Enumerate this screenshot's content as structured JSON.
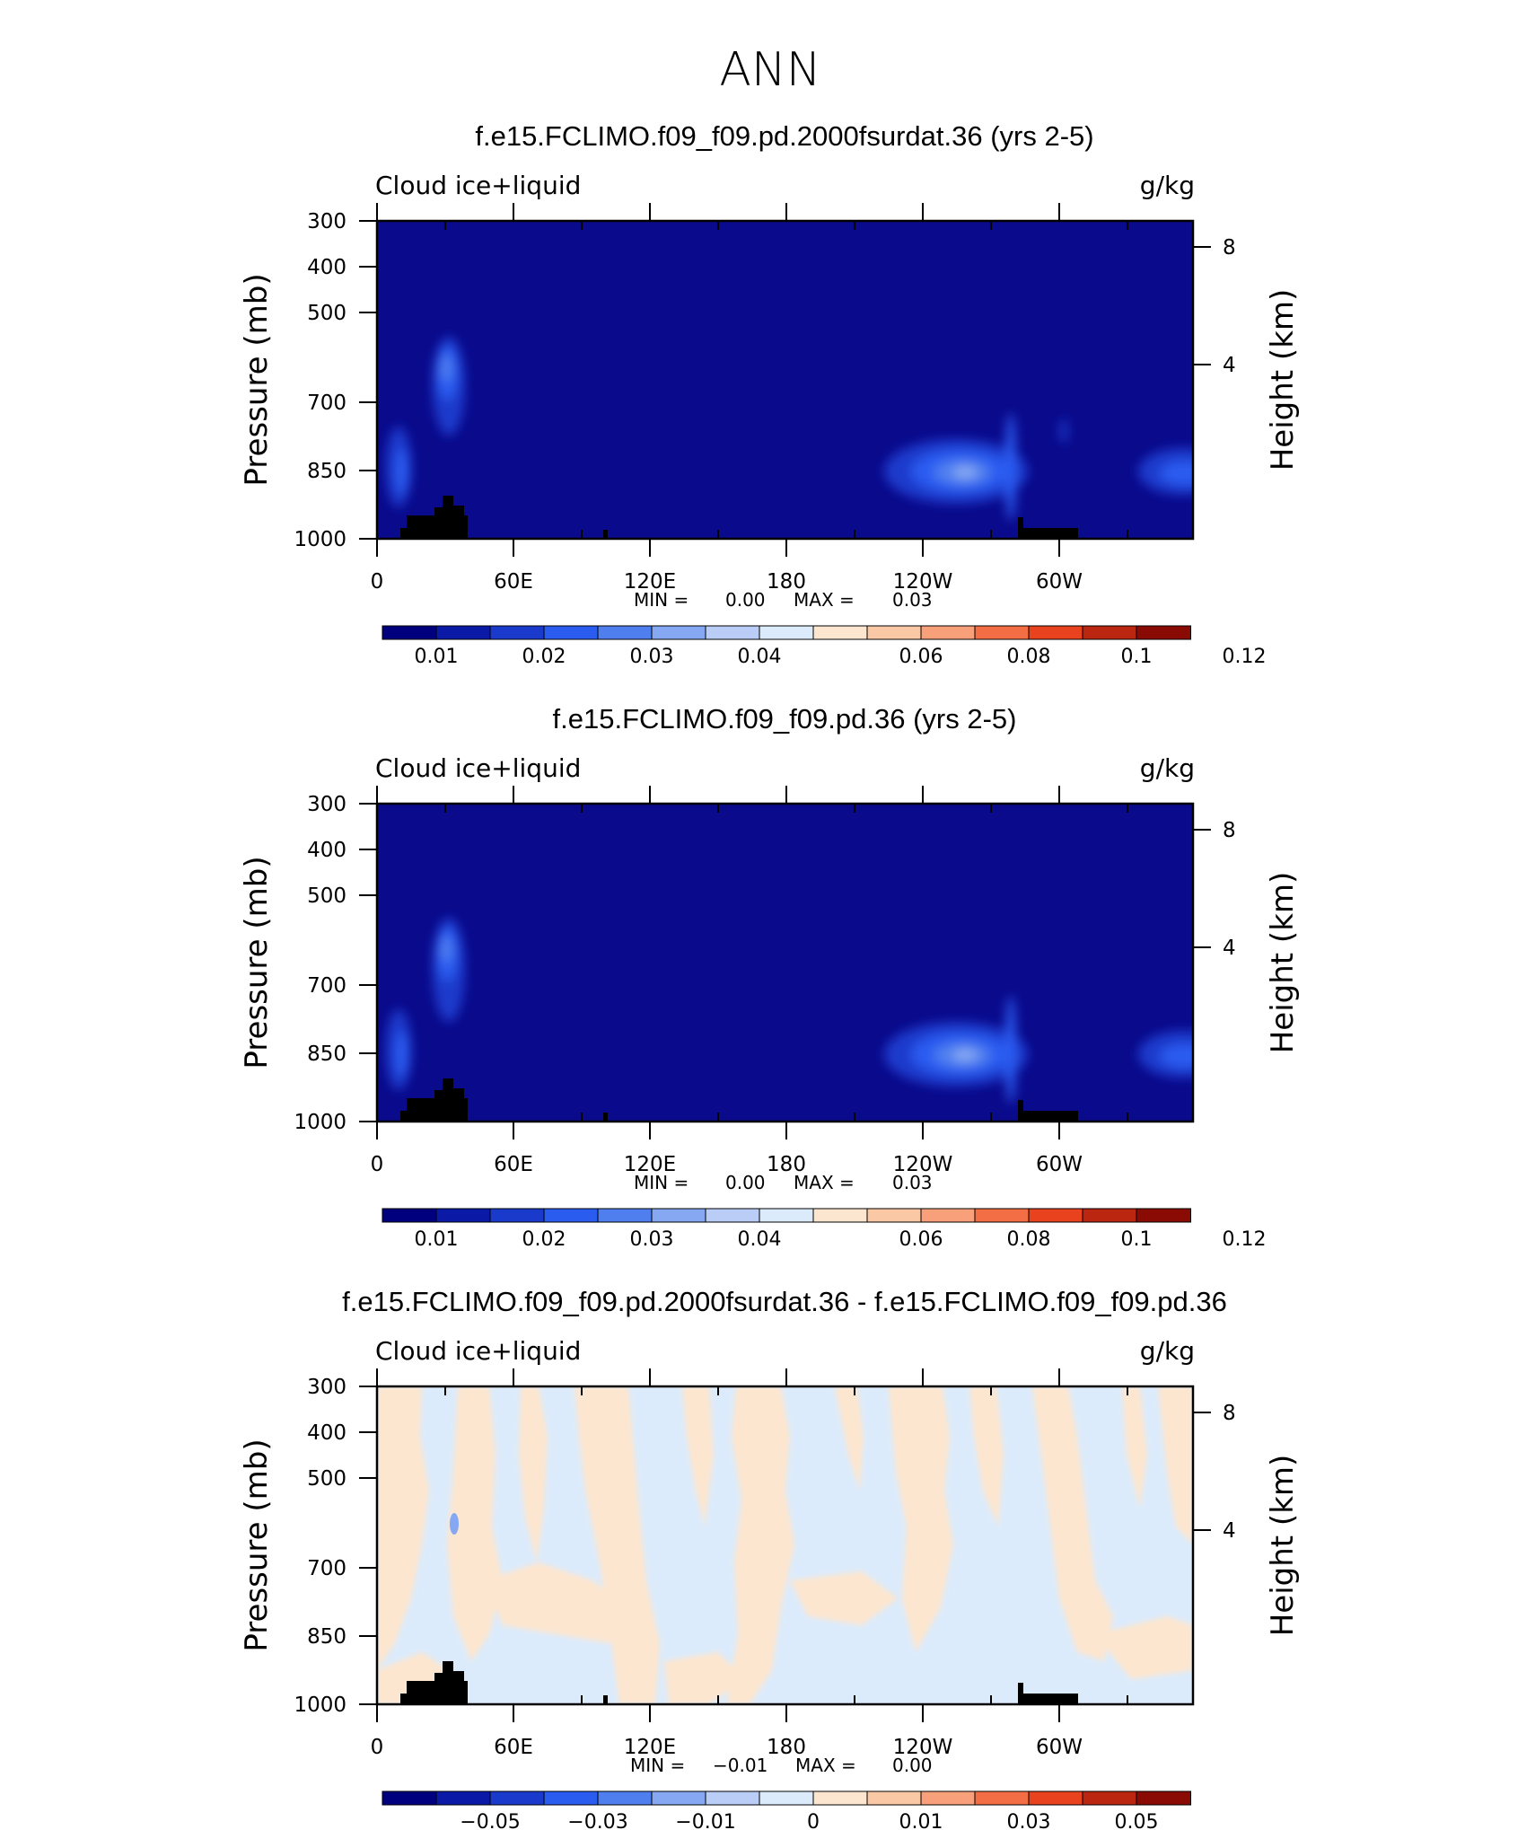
{
  "figure": {
    "title": "ANN"
  },
  "colors": {
    "background": "#0a0a8c",
    "land": "#000000",
    "abs_scale": [
      "#00007f",
      "#0a1aa6",
      "#1a3acc",
      "#2a5cf0",
      "#4f7fef",
      "#86a8f2",
      "#b9cdf7",
      "#dcebfb",
      "#fde6cf",
      "#fbc8a6",
      "#f8a07a",
      "#f46e45",
      "#e8431e",
      "#bb2610",
      "#8a0a04"
    ],
    "diff_scale": [
      "#00007f",
      "#0a1aa6",
      "#1a3acc",
      "#2a5cf0",
      "#4f7fef",
      "#86a8f2",
      "#b9cdf7",
      "#dcebfb",
      "#fde6cf",
      "#fbc8a6",
      "#f8a07a",
      "#f46e45",
      "#e8431e",
      "#bb2610",
      "#8a0a04"
    ]
  },
  "chart_data": [
    {
      "type": "heatmap",
      "title": "f.e15.FCLIMO.f09_f09.pd.2000fsurdat.36 (yrs 2-5)",
      "variable": "Cloud ice+liquid",
      "units": "g/kg",
      "ylabel": "Pressure (mb)",
      "ylabel_right": "Height (km)",
      "x_ticks": [
        "0",
        "60E",
        "120E",
        "180",
        "120W",
        "60W"
      ],
      "y_ticks": [
        "300",
        "400",
        "500",
        "700",
        "850",
        "1000"
      ],
      "y_ticks_right": [
        "8",
        "4"
      ],
      "ylim": [
        1000,
        300
      ],
      "stats": {
        "min_label": "MIN =",
        "min": "0.00",
        "max_label": "MAX =",
        "max": "0.03"
      },
      "colorbar_labels": [
        "0.01",
        "0.02",
        "0.03",
        "0.04",
        "0.06",
        "0.08",
        "0.1",
        "0.12"
      ]
    },
    {
      "type": "heatmap",
      "title": "f.e15.FCLIMO.f09_f09.pd.36 (yrs 2-5)",
      "variable": "Cloud ice+liquid",
      "units": "g/kg",
      "ylabel": "Pressure (mb)",
      "ylabel_right": "Height (km)",
      "x_ticks": [
        "0",
        "60E",
        "120E",
        "180",
        "120W",
        "60W"
      ],
      "y_ticks": [
        "300",
        "400",
        "500",
        "700",
        "850",
        "1000"
      ],
      "y_ticks_right": [
        "8",
        "4"
      ],
      "ylim": [
        1000,
        300
      ],
      "stats": {
        "min_label": "MIN =",
        "min": "0.00",
        "max_label": "MAX =",
        "max": "0.03"
      },
      "colorbar_labels": [
        "0.01",
        "0.02",
        "0.03",
        "0.04",
        "0.06",
        "0.08",
        "0.1",
        "0.12"
      ]
    },
    {
      "type": "heatmap",
      "title": "f.e15.FCLIMO.f09_f09.pd.2000fsurdat.36 - f.e15.FCLIMO.f09_f09.pd.36",
      "variable": "Cloud ice+liquid",
      "units": "g/kg",
      "ylabel": "Pressure (mb)",
      "ylabel_right": "Height (km)",
      "x_ticks": [
        "0",
        "60E",
        "120E",
        "180",
        "120W",
        "60W"
      ],
      "y_ticks": [
        "300",
        "400",
        "500",
        "700",
        "850",
        "1000"
      ],
      "y_ticks_right": [
        "8",
        "4"
      ],
      "ylim": [
        1000,
        300
      ],
      "stats": {
        "min_label": "MIN =",
        "min": "−0.01",
        "max_label": "MAX =",
        "max": "0.00"
      },
      "colorbar_labels": [
        "−0.05",
        "−0.03",
        "−0.01",
        "0",
        "0.01",
        "0.03",
        "0.05"
      ]
    }
  ]
}
